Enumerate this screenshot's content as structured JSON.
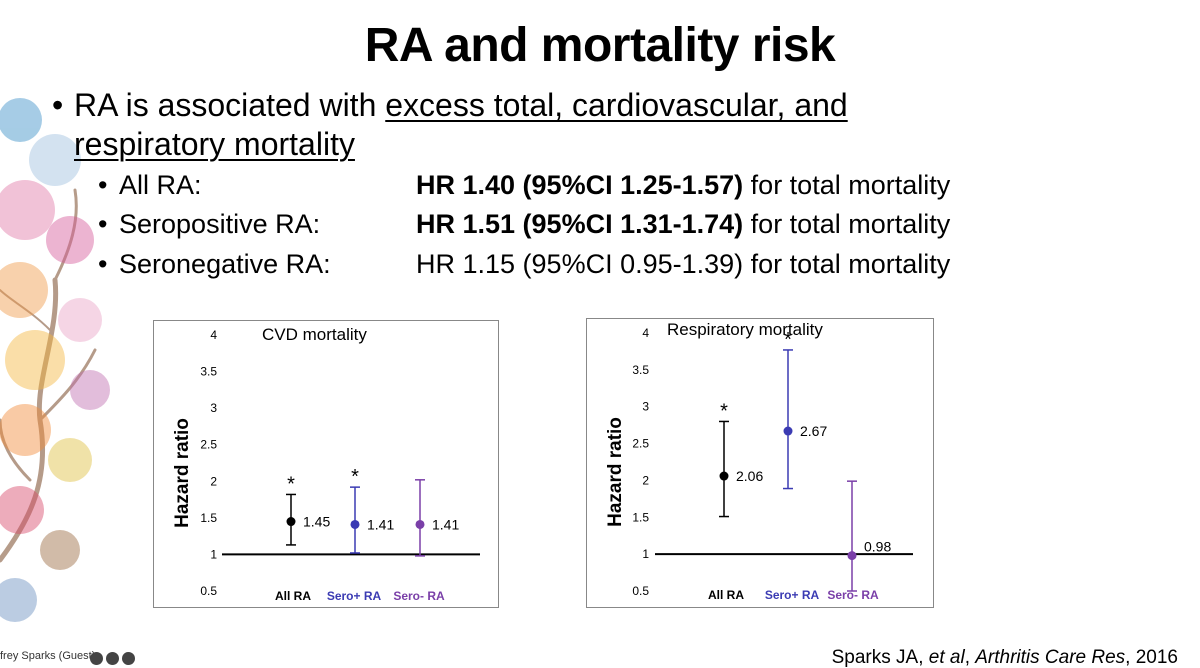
{
  "slide": {
    "title": "RA and mortality risk",
    "main_bullet": {
      "prefix": "RA is associated with ",
      "underlined_part1": "excess total, cardiovascular, and",
      "underlined_part2": "respiratory mortality"
    },
    "sub_bullets": [
      {
        "label": "All RA:",
        "hr_bold": "HR 1.40 (95%CI 1.25-1.57)",
        "hr_rest": " for total mortality"
      },
      {
        "label": "Seropositive RA:",
        "hr_bold": "HR 1.51 (95%CI 1.31-1.74)",
        "hr_rest": " for total mortality"
      },
      {
        "label": "Seronegative RA:",
        "hr_plain": "HR 1.15 (95%CI 0.95-1.39) for total mortality"
      }
    ],
    "citation": {
      "authors": "Sparks JA, ",
      "etal": "et al",
      "journal": "Arthritis Care Res",
      "year": ", 2016"
    },
    "participant_label": "frey Sparks (Guest)"
  },
  "colors": {
    "black": "#000000",
    "seropos": "#3b3bb3",
    "seroneg": "#7a3fa8",
    "baseline": "#000000"
  },
  "chart_data": [
    {
      "type": "scatter",
      "title": "CVD mortality",
      "ylabel": "Hazard ratio",
      "ylim": [
        0.5,
        4
      ],
      "yticks": [
        "0.5",
        "1",
        "1.5",
        "2",
        "2.5",
        "3",
        "3.5",
        "4"
      ],
      "categories": [
        "All RA",
        "Sero+ RA",
        "Sero- RA"
      ],
      "points": [
        {
          "value": 1.45,
          "label": "1.45",
          "ci": [
            1.13,
            1.82
          ],
          "star": true
        },
        {
          "value": 1.41,
          "label": "1.41",
          "ci": [
            1.02,
            1.92
          ],
          "star": true
        },
        {
          "value": 1.41,
          "label": "1.41",
          "ci": [
            0.98,
            2.02
          ],
          "star": false
        }
      ],
      "reference_line": 1,
      "star_text": "*"
    },
    {
      "type": "scatter",
      "title": "Respiratory mortality",
      "ylabel": "Hazard ratio",
      "ylim": [
        0.5,
        4
      ],
      "yticks": [
        "0.5",
        "1",
        "1.5",
        "2",
        "2.5",
        "3",
        "3.5",
        "4"
      ],
      "categories": [
        "All RA",
        "Sero+ RA",
        "Sero- RA"
      ],
      "points": [
        {
          "value": 2.06,
          "label": "2.06",
          "ci": [
            1.51,
            2.8
          ],
          "star": true
        },
        {
          "value": 2.67,
          "label": "2.67",
          "ci": [
            1.89,
            3.77
          ],
          "star": true
        },
        {
          "value": 0.98,
          "label": "0.98",
          "ci": [
            0.5,
            1.99
          ],
          "star": false
        }
      ],
      "reference_line": 1,
      "star_text": "*"
    }
  ]
}
